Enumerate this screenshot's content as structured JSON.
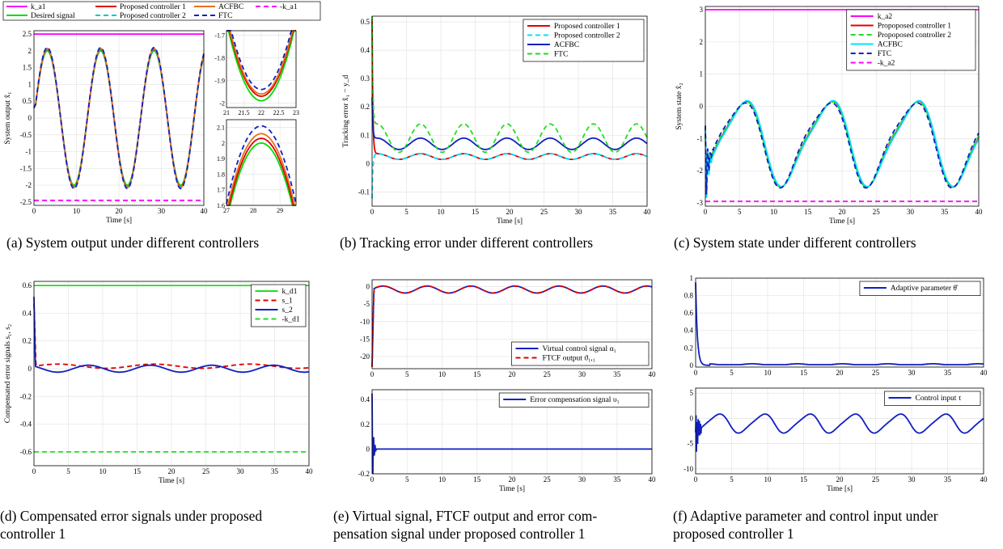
{
  "captions": {
    "a": "(a) System output under different controllers",
    "b": "(b) Tracking error under different controllers",
    "c": "(c) System state under different controllers",
    "d1": "(d) Compensated error signals under proposed",
    "d2": "controller 1",
    "e1": "(e) Virtual signal, FTCF output and error com-",
    "e2": "pensation signal under proposed controller 1",
    "f1": "(f) Adaptive parameter and control input under",
    "f2": "proposed controller 1"
  },
  "chart_data": [
    {
      "id": "a",
      "type": "line",
      "xlabel": "Time [s]",
      "ylabel": "System output x̂₁",
      "xlim": [
        0,
        40
      ],
      "ylim": [
        -2.6,
        2.6
      ],
      "xticks": [
        0,
        10,
        20,
        30,
        40
      ],
      "yticks": [
        -2.5,
        -2,
        -1.5,
        -1,
        -0.5,
        0,
        0.5,
        1,
        1.5,
        2,
        2.5
      ],
      "grid": true,
      "legend_position": "top",
      "series": [
        {
          "name": "k_a1",
          "color": "#ff00ff",
          "style": "solid",
          "formula": "const",
          "value": 2.5
        },
        {
          "name": "Desired signal",
          "color": "#00dd00",
          "style": "solid",
          "formula": "sine",
          "amplitude": 2.0,
          "period": 12.566
        },
        {
          "name": "Proposed controller 1",
          "color": "#e00000",
          "style": "solid",
          "formula": "sine",
          "amplitude": 2.05,
          "period": 12.566
        },
        {
          "name": "Proposed controller 2",
          "color": "#00c8c8",
          "style": "dashed",
          "formula": "sine",
          "amplitude": 2.05,
          "period": 12.566
        },
        {
          "name": "ACFBC",
          "color": "#e87020",
          "style": "solid",
          "formula": "sine",
          "amplitude": 2.07,
          "period": 12.566
        },
        {
          "name": "FTC",
          "color": "#1020c0",
          "style": "dashed",
          "formula": "sine",
          "amplitude": 2.1,
          "period": 12.566
        },
        {
          "name": "-k_a1",
          "color": "#ff00ff",
          "style": "dashed",
          "formula": "const",
          "value": -2.45
        }
      ],
      "insets": [
        {
          "xlim": [
            21,
            23
          ],
          "ylim": [
            -2.02,
            -1.68
          ],
          "xticks": [
            21,
            21.5,
            22,
            22.5,
            23
          ],
          "yticks": [
            -2,
            -1.9,
            -1.8,
            -1.7
          ],
          "minima": [
            -1.99,
            -1.97,
            -1.96,
            -1.94
          ]
        },
        {
          "xlim": [
            27,
            29.6
          ],
          "ylim": [
            1.6,
            2.15
          ],
          "xticks": [
            27,
            28,
            29
          ],
          "yticks": [
            1.6,
            1.7,
            1.8,
            1.9,
            2,
            2.1
          ],
          "maxima": [
            2.0,
            2.03,
            2.06,
            2.11
          ]
        }
      ]
    },
    {
      "id": "b",
      "type": "line",
      "xlabel": "Time [s]",
      "ylabel": "Tracking error x̂₁ − y_d",
      "xlim": [
        0,
        40
      ],
      "ylim": [
        -0.15,
        0.52
      ],
      "xticks": [
        0,
        5,
        10,
        15,
        20,
        25,
        30,
        35,
        40
      ],
      "yticks": [
        -0.1,
        0,
        0.1,
        0.2,
        0.3,
        0.4,
        0.5
      ],
      "grid": true,
      "legend_position": "top-right",
      "series": [
        {
          "name": "Proposed controller 1",
          "color": "#e00000",
          "style": "solid",
          "base": 0.025,
          "amp": 0.01,
          "transient": 0.5
        },
        {
          "name": "Proposed controller 2",
          "color": "#00e0ff",
          "style": "dashed",
          "base": 0.025,
          "amp": 0.01,
          "transient": -0.13
        },
        {
          "name": "ACFBC",
          "color": "#1020c0",
          "style": "solid",
          "base": 0.07,
          "amp": 0.02,
          "transient": 0.22
        },
        {
          "name": "FTC",
          "color": "#22dd22",
          "style": "dashed",
          "base": 0.09,
          "amp": 0.05,
          "transient": 0.5
        }
      ]
    },
    {
      "id": "c",
      "type": "line",
      "xlabel": "Time [s]",
      "ylabel": "System state x̂₂",
      "xlim": [
        0,
        40
      ],
      "ylim": [
        -3.1,
        3.1
      ],
      "xticks": [
        0,
        5,
        10,
        15,
        20,
        25,
        30,
        35,
        40
      ],
      "yticks": [
        -3,
        -2,
        -1,
        0,
        1,
        2,
        3
      ],
      "grid": true,
      "legend_position": "top-right",
      "series": [
        {
          "name": "k_a2",
          "color": "#ff00ff",
          "style": "solid",
          "formula": "const",
          "value": 3.0
        },
        {
          "name": "Propoposed controller 1",
          "color": "#e00000",
          "style": "solid"
        },
        {
          "name": "Propoposed controller 2",
          "color": "#22dd22",
          "style": "dashed"
        },
        {
          "name": "ACFBC",
          "color": "#00e0ff",
          "style": "solid"
        },
        {
          "name": "FTC",
          "color": "#1020c0",
          "style": "dashed"
        },
        {
          "name": "-k_a2",
          "color": "#ff00ff",
          "style": "dashed",
          "formula": "const",
          "value": -2.95
        }
      ]
    },
    {
      "id": "d",
      "type": "line",
      "xlabel": "Time [s]",
      "ylabel": "Compensated error signals s₁, s₂",
      "xlim": [
        0,
        40
      ],
      "ylim": [
        -0.7,
        0.63
      ],
      "xticks": [
        0,
        5,
        10,
        15,
        20,
        25,
        30,
        35,
        40
      ],
      "yticks": [
        -0.6,
        -0.4,
        -0.2,
        0,
        0.2,
        0.4,
        0.6
      ],
      "grid": true,
      "legend_position": "top-right",
      "series": [
        {
          "name": "k_d1",
          "color": "#22dd22",
          "style": "solid",
          "formula": "const",
          "value": 0.6
        },
        {
          "name": "s_1",
          "color": "#e00000",
          "style": "dashed"
        },
        {
          "name": "s_2",
          "color": "#1020c0",
          "style": "solid"
        },
        {
          "name": "-k_d1",
          "color": "#22dd22",
          "style": "dashed",
          "formula": "const",
          "value": -0.6
        }
      ]
    },
    {
      "id": "e1",
      "type": "line",
      "xlabel": "",
      "ylabel": "",
      "xlim": [
        0,
        40
      ],
      "ylim": [
        -23.5,
        2
      ],
      "xticks": [
        0,
        5,
        10,
        15,
        20,
        25,
        30,
        35,
        40
      ],
      "yticks": [
        -20,
        -15,
        -10,
        -5,
        0
      ],
      "grid": true,
      "legend_position": "bottom-right",
      "series": [
        {
          "name": "Virtual control signal α₁",
          "color": "#1020c0",
          "style": "solid"
        },
        {
          "name": "FTCF output ϑ₁,₁",
          "color": "#e00000",
          "style": "dashed"
        }
      ]
    },
    {
      "id": "e2",
      "type": "line",
      "xlabel": "Time [s]",
      "ylabel": "",
      "xlim": [
        0,
        40
      ],
      "ylim": [
        -0.2,
        0.48
      ],
      "xticks": [
        0,
        5,
        10,
        15,
        20,
        25,
        30,
        35,
        40
      ],
      "yticks": [
        -0.2,
        0,
        0.2,
        0.4
      ],
      "grid": true,
      "legend_position": "top-right",
      "series": [
        {
          "name": "Error compensation signal υ₁",
          "color": "#1020c0",
          "style": "solid"
        }
      ]
    },
    {
      "id": "f1",
      "type": "line",
      "xlabel": "",
      "ylabel": "",
      "xlim": [
        0,
        40
      ],
      "ylim": [
        -0.02,
        1
      ],
      "xticks": [
        0,
        5,
        10,
        15,
        20,
        25,
        30,
        35,
        40
      ],
      "yticks": [
        0,
        0.2,
        0.4,
        0.6,
        0.8,
        1
      ],
      "grid": true,
      "legend_position": "top-right",
      "series": [
        {
          "name": "Adaptive parameter θ̂",
          "color": "#1020c0",
          "style": "solid"
        }
      ]
    },
    {
      "id": "f2",
      "type": "line",
      "xlabel": "Time [s]",
      "ylabel": "",
      "xlim": [
        0,
        40
      ],
      "ylim": [
        -11,
        6
      ],
      "xticks": [
        0,
        5,
        10,
        15,
        20,
        25,
        30,
        35,
        40
      ],
      "yticks": [
        -10,
        -5,
        0,
        5
      ],
      "grid": true,
      "legend_position": "top-right",
      "series": [
        {
          "name": "Control input τ",
          "color": "#1020c0",
          "style": "solid"
        }
      ]
    }
  ]
}
